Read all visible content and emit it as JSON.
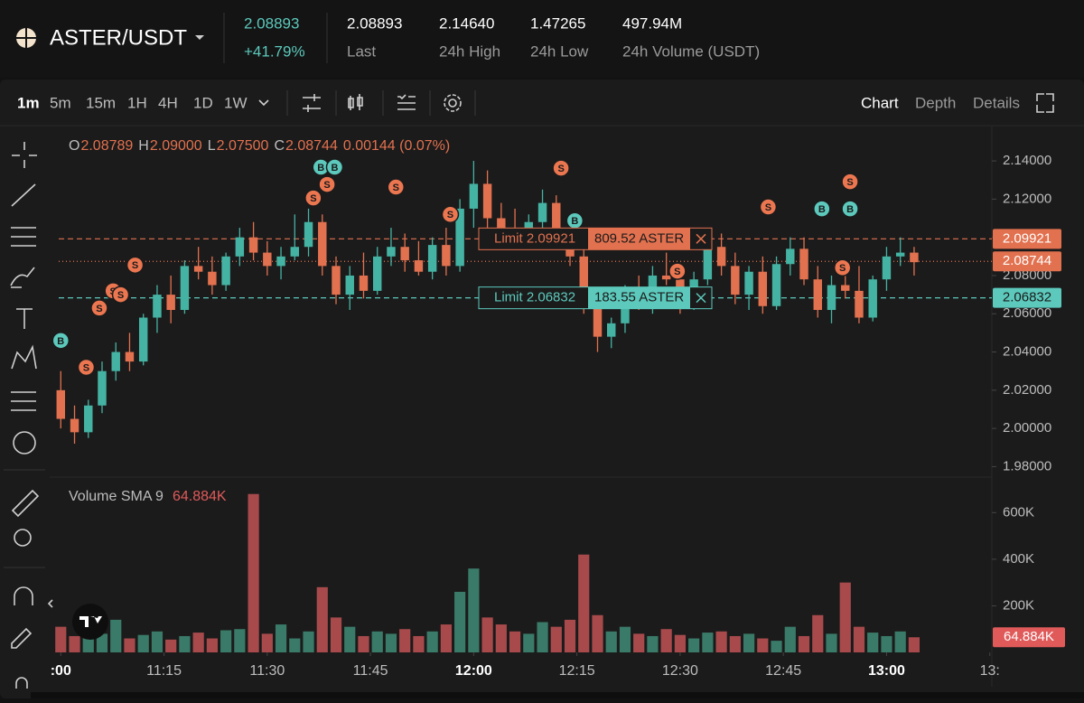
{
  "header": {
    "pair": "ASTER/USDT",
    "price": "2.08893",
    "change": "+41.79%",
    "stats": [
      {
        "value": "2.08893",
        "label": "Last"
      },
      {
        "value": "2.14640",
        "label": "24h High"
      },
      {
        "value": "1.47265",
        "label": "24h Low"
      },
      {
        "value": "497.94M",
        "label": "24h Volume (USDT)"
      }
    ]
  },
  "toolbar": {
    "intervals": [
      "1m",
      "5m",
      "15m",
      "1H",
      "4H",
      "1D",
      "1W"
    ],
    "tabs": [
      "Chart",
      "Depth",
      "Details"
    ]
  },
  "chart_data": [
    {
      "type": "candlestick",
      "x": [
        0,
        2,
        4,
        6,
        8,
        10,
        12,
        14,
        16,
        18,
        20,
        22,
        24,
        26,
        28,
        30,
        32,
        34,
        36,
        38,
        40,
        42,
        44,
        46,
        48,
        50,
        52,
        54,
        56,
        58,
        60,
        62,
        64,
        66,
        68,
        70,
        72,
        74,
        76,
        78,
        80,
        82,
        84,
        86,
        88,
        90,
        92,
        94,
        96,
        98,
        100,
        102,
        104,
        106,
        108,
        110,
        112,
        114,
        116,
        118,
        120,
        122,
        124
      ],
      "open": [
        2.02,
        2.005,
        1.998,
        2.012,
        2.03,
        2.04,
        2.035,
        2.058,
        2.07,
        2.062,
        2.085,
        2.082,
        2.075,
        2.09,
        2.1,
        2.092,
        2.085,
        2.09,
        2.095,
        2.108,
        2.085,
        2.07,
        2.08,
        2.072,
        2.09,
        2.095,
        2.088,
        2.082,
        2.096,
        2.085,
        2.115,
        2.128,
        2.11,
        2.104,
        2.1,
        2.108,
        2.118,
        2.102,
        2.09,
        2.065,
        2.048,
        2.055,
        2.07,
        2.066,
        2.08,
        2.078,
        2.064,
        2.078,
        2.095,
        2.085,
        2.07,
        2.082,
        2.064,
        2.086,
        2.094,
        2.078,
        2.062,
        2.075,
        2.072,
        2.058,
        2.078,
        2.09,
        2.092
      ],
      "high": [
        2.03,
        2.012,
        2.015,
        2.035,
        2.045,
        2.05,
        2.06,
        2.075,
        2.08,
        2.088,
        2.095,
        2.09,
        2.092,
        2.105,
        2.108,
        2.098,
        2.095,
        2.112,
        2.115,
        2.112,
        2.09,
        2.085,
        2.092,
        2.095,
        2.105,
        2.102,
        2.098,
        2.1,
        2.105,
        2.12,
        2.14,
        2.135,
        2.118,
        2.115,
        2.112,
        2.125,
        2.122,
        2.108,
        2.095,
        2.07,
        2.058,
        2.075,
        2.08,
        2.085,
        2.092,
        2.085,
        2.082,
        2.1,
        2.102,
        2.092,
        2.085,
        2.09,
        2.09,
        2.1,
        2.1,
        2.085,
        2.08,
        2.088,
        2.085,
        2.08,
        2.095,
        2.1,
        2.095
      ],
      "low": [
        2.0,
        1.992,
        1.995,
        2.008,
        2.025,
        2.03,
        2.033,
        2.05,
        2.055,
        2.06,
        2.078,
        2.07,
        2.072,
        2.085,
        2.088,
        2.08,
        2.078,
        2.088,
        2.09,
        2.08,
        2.065,
        2.062,
        2.068,
        2.07,
        2.085,
        2.082,
        2.08,
        2.078,
        2.08,
        2.082,
        2.105,
        2.105,
        2.1,
        2.098,
        2.095,
        2.1,
        2.098,
        2.085,
        2.06,
        2.04,
        2.042,
        2.05,
        2.062,
        2.06,
        2.075,
        2.06,
        2.062,
        2.075,
        2.08,
        2.065,
        2.062,
        2.06,
        2.062,
        2.08,
        2.075,
        2.058,
        2.055,
        2.068,
        2.055,
        2.056,
        2.072,
        2.085,
        2.08
      ],
      "close": [
        2.005,
        1.998,
        2.012,
        2.03,
        2.04,
        2.035,
        2.058,
        2.07,
        2.062,
        2.085,
        2.082,
        2.075,
        2.09,
        2.1,
        2.092,
        2.085,
        2.09,
        2.095,
        2.108,
        2.085,
        2.07,
        2.08,
        2.072,
        2.09,
        2.095,
        2.088,
        2.082,
        2.096,
        2.085,
        2.115,
        2.128,
        2.11,
        2.104,
        2.1,
        2.108,
        2.118,
        2.102,
        2.09,
        2.065,
        2.048,
        2.055,
        2.07,
        2.066,
        2.08,
        2.078,
        2.064,
        2.078,
        2.095,
        2.085,
        2.07,
        2.082,
        2.064,
        2.086,
        2.094,
        2.078,
        2.062,
        2.075,
        2.072,
        2.058,
        2.078,
        2.09,
        2.092,
        2.087
      ],
      "up_color": "#45b3a3",
      "down_color": "#e2714f",
      "xlim": [
        -0.3,
        135.3
      ],
      "xticks": [
        {
          "value": 0,
          "label": ":00"
        },
        {
          "value": 15,
          "label": "11:15"
        },
        {
          "value": 30,
          "label": "11:30"
        },
        {
          "value": 45,
          "label": "11:45"
        },
        {
          "value": 60,
          "label": "12:00"
        },
        {
          "value": 75,
          "label": "12:15"
        },
        {
          "value": 90,
          "label": "12:30"
        },
        {
          "value": 105,
          "label": "12:45"
        },
        {
          "value": 120,
          "label": "13:00"
        },
        {
          "value": 135,
          "label": "13:"
        }
      ],
      "ylim": [
        1.975,
        2.158
      ],
      "yticks": [
        {
          "value": 1.98,
          "label": "1.98000"
        },
        {
          "value": 2.0,
          "label": "2.00000"
        },
        {
          "value": 2.02,
          "label": "2.02000"
        },
        {
          "value": 2.04,
          "label": "2.04000"
        },
        {
          "value": 2.06,
          "label": "2.06000"
        },
        {
          "value": 2.08,
          "label": "2.08000"
        },
        {
          "value": 2.1,
          "label": "2.10000"
        },
        {
          "value": 2.12,
          "label": "2.12000"
        },
        {
          "value": 2.14,
          "label": "2.14000"
        }
      ],
      "ohlc_legend": [
        {
          "key": "O",
          "value": "2.08789"
        },
        {
          "key": "H",
          "value": "2.09000"
        },
        {
          "key": "L",
          "value": "2.07500"
        },
        {
          "key": "C",
          "value": "2.08744"
        }
      ],
      "change": "0.00144 (0.07%)",
      "last_price": {
        "price": 2.08744,
        "color": "#e2714f"
      },
      "orders": [
        {
          "text": "Limit 2.09921",
          "quantity": "809.52 ASTER",
          "price": 2.09921,
          "color": "#e2714f"
        },
        {
          "text": "Limit 2.06832",
          "quantity": "183.55 ASTER",
          "price": 2.06832,
          "color": "#5cc9bc"
        }
      ],
      "markers": [
        {
          "label": "S",
          "color": "#ec7650",
          "points": [
            {
              "x": 3.7,
              "y": 2.032
            },
            {
              "x": 5.6,
              "y": 2.063
            },
            {
              "x": 7.6,
              "y": 2.072
            },
            {
              "x": 8.7,
              "y": 2.07
            },
            {
              "x": 10.8,
              "y": 2.0855
            },
            {
              "x": 36.7,
              "y": 2.1206
            },
            {
              "x": 38.7,
              "y": 2.1277
            },
            {
              "x": 48.7,
              "y": 2.1263
            },
            {
              "x": 56.6,
              "y": 2.112
            },
            {
              "x": 72.7,
              "y": 2.1362
            },
            {
              "x": 89.6,
              "y": 2.0823
            },
            {
              "x": 102.8,
              "y": 2.1159
            },
            {
              "x": 114.7,
              "y": 2.1291
            },
            {
              "x": 113.6,
              "y": 2.0841
            }
          ]
        },
        {
          "label": "B",
          "color": "#5cc9bc",
          "points": [
            {
              "x": 0,
              "y": 2.046
            },
            {
              "x": 37.8,
              "y": 2.1367
            },
            {
              "x": 39.8,
              "y": 2.1367
            },
            {
              "x": 74.7,
              "y": 2.1087
            },
            {
              "x": 110.6,
              "y": 2.1149
            },
            {
              "x": 114.7,
              "y": 2.1149
            }
          ]
        }
      ]
    },
    {
      "type": "bar",
      "title": "Volume SMA 9",
      "sma": {
        "value": 64884,
        "label": "64.884K"
      },
      "sma_color": "#e05a5a",
      "values": [
        110000,
        70000,
        95000,
        80000,
        140000,
        60000,
        75000,
        90000,
        55000,
        70000,
        85000,
        60000,
        95000,
        100000,
        680000,
        80000,
        120000,
        60000,
        90000,
        280000,
        150000,
        110000,
        70000,
        90000,
        80000,
        100000,
        70000,
        90000,
        120000,
        260000,
        360000,
        150000,
        120000,
        90000,
        80000,
        130000,
        110000,
        140000,
        420000,
        160000,
        90000,
        110000,
        80000,
        70000,
        100000,
        75000,
        60000,
        85000,
        90000,
        70000,
        80000,
        60000,
        50000,
        110000,
        70000,
        160000,
        80000,
        300000,
        110000,
        85000,
        70000,
        90000,
        65000
      ],
      "up_color": "#3a7a68",
      "down_color": "#a84a4c",
      "ylim": [
        0,
        706000
      ],
      "yticks": [
        {
          "value": 200000,
          "label": "200K"
        },
        {
          "value": 400000,
          "label": "400K"
        },
        {
          "value": 600000,
          "label": "600K"
        }
      ]
    }
  ]
}
